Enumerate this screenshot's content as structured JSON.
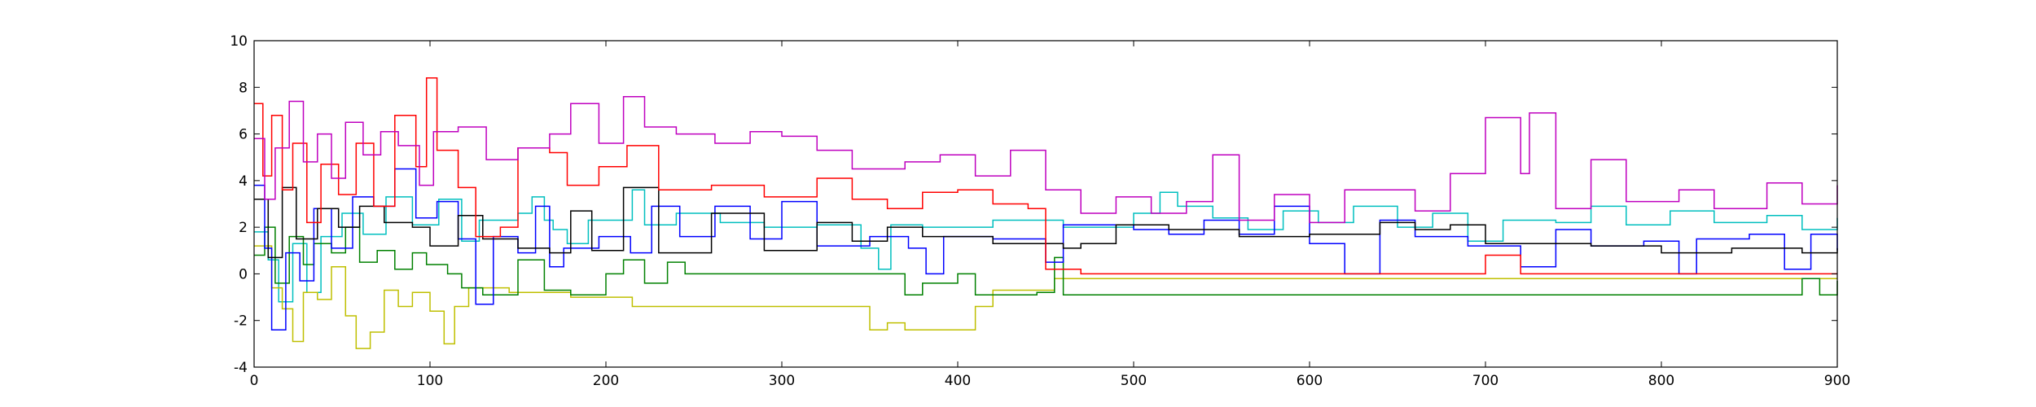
{
  "chart_data": {
    "type": "line",
    "title": "",
    "xlabel": "",
    "ylabel": "",
    "xlim": [
      0,
      900
    ],
    "ylim": [
      -4,
      10
    ],
    "grid": false,
    "legend": "none",
    "x_ticks": [
      "0",
      "100",
      "200",
      "300",
      "400",
      "500",
      "600",
      "700",
      "800",
      "900"
    ],
    "y_ticks": [
      "-4",
      "-2",
      "0",
      "2",
      "4",
      "6",
      "8",
      "10"
    ],
    "series": [
      {
        "color": "#00bfbf",
        "step": true,
        "points": [
          [
            0,
            1.8
          ],
          [
            8,
            0.6
          ],
          [
            14,
            -1.2
          ],
          [
            22,
            1.3
          ],
          [
            30,
            -0.8
          ],
          [
            38,
            1.6
          ],
          [
            50,
            2.6
          ],
          [
            62,
            1.7
          ],
          [
            75,
            3.3
          ],
          [
            90,
            2.1
          ],
          [
            105,
            3.2
          ],
          [
            118,
            1.4
          ],
          [
            128,
            2.3
          ],
          [
            150,
            2.6
          ],
          [
            158,
            3.3
          ],
          [
            165,
            2.3
          ],
          [
            170,
            1.9
          ],
          [
            178,
            1.3
          ],
          [
            190,
            2.3
          ],
          [
            215,
            3.6
          ],
          [
            222,
            2.1
          ],
          [
            240,
            2.6
          ],
          [
            265,
            2.2
          ],
          [
            290,
            2.0
          ],
          [
            320,
            2.1
          ],
          [
            345,
            1.1
          ],
          [
            355,
            0.2
          ],
          [
            362,
            2.1
          ],
          [
            380,
            2.0
          ],
          [
            420,
            2.3
          ],
          [
            460,
            2.0
          ],
          [
            500,
            2.6
          ],
          [
            515,
            3.5
          ],
          [
            525,
            2.9
          ],
          [
            545,
            2.4
          ],
          [
            565,
            1.9
          ],
          [
            585,
            2.7
          ],
          [
            605,
            2.2
          ],
          [
            625,
            2.9
          ],
          [
            650,
            2.0
          ],
          [
            670,
            2.6
          ],
          [
            690,
            1.4
          ],
          [
            710,
            2.3
          ],
          [
            740,
            2.2
          ],
          [
            760,
            2.9
          ],
          [
            780,
            2.1
          ],
          [
            805,
            2.7
          ],
          [
            830,
            2.2
          ],
          [
            860,
            2.5
          ],
          [
            880,
            1.9
          ],
          [
            900,
            2.4
          ]
        ]
      },
      {
        "color": "#bfbf00",
        "step": true,
        "points": [
          [
            0,
            1.2
          ],
          [
            10,
            -0.6
          ],
          [
            16,
            -1.5
          ],
          [
            22,
            -2.9
          ],
          [
            28,
            -0.8
          ],
          [
            36,
            -1.1
          ],
          [
            44,
            0.3
          ],
          [
            52,
            -1.8
          ],
          [
            58,
            -3.2
          ],
          [
            66,
            -2.5
          ],
          [
            74,
            -0.7
          ],
          [
            82,
            -1.4
          ],
          [
            90,
            -0.8
          ],
          [
            100,
            -1.6
          ],
          [
            108,
            -3.0
          ],
          [
            114,
            -1.4
          ],
          [
            122,
            -0.6
          ],
          [
            145,
            -0.8
          ],
          [
            180,
            -1.0
          ],
          [
            215,
            -1.4
          ],
          [
            350,
            -2.4
          ],
          [
            360,
            -2.1
          ],
          [
            370,
            -2.4
          ],
          [
            410,
            -1.4
          ],
          [
            420,
            -0.7
          ],
          [
            440,
            -0.7
          ],
          [
            455,
            -0.2
          ],
          [
            470,
            -0.2
          ],
          [
            600,
            -0.2
          ],
          [
            870,
            -0.2
          ],
          [
            900,
            -0.2
          ]
        ]
      },
      {
        "color": "#008000",
        "step": true,
        "points": [
          [
            0,
            0.8
          ],
          [
            6,
            2.0
          ],
          [
            12,
            -0.4
          ],
          [
            20,
            1.6
          ],
          [
            28,
            0.4
          ],
          [
            34,
            1.3
          ],
          [
            44,
            0.9
          ],
          [
            52,
            2.0
          ],
          [
            60,
            0.5
          ],
          [
            70,
            1.0
          ],
          [
            80,
            0.2
          ],
          [
            90,
            0.9
          ],
          [
            98,
            0.4
          ],
          [
            110,
            0.0
          ],
          [
            118,
            -0.6
          ],
          [
            130,
            -0.9
          ],
          [
            150,
            0.6
          ],
          [
            165,
            -0.7
          ],
          [
            180,
            -0.9
          ],
          [
            200,
            0.0
          ],
          [
            210,
            0.6
          ],
          [
            222,
            -0.4
          ],
          [
            235,
            0.5
          ],
          [
            245,
            0.0
          ],
          [
            300,
            0.0
          ],
          [
            360,
            0.0
          ],
          [
            370,
            -0.9
          ],
          [
            380,
            -0.4
          ],
          [
            400,
            0.0
          ],
          [
            410,
            -0.9
          ],
          [
            445,
            -0.8
          ],
          [
            455,
            0.7
          ],
          [
            460,
            -0.9
          ],
          [
            600,
            -0.9
          ],
          [
            870,
            -0.9
          ],
          [
            880,
            -0.2
          ],
          [
            890,
            -0.9
          ],
          [
            900,
            -0.3
          ]
        ]
      },
      {
        "color": "#0000ff",
        "step": true,
        "points": [
          [
            0,
            3.8
          ],
          [
            6,
            1.1
          ],
          [
            10,
            -2.4
          ],
          [
            18,
            0.9
          ],
          [
            26,
            -0.3
          ],
          [
            34,
            2.8
          ],
          [
            44,
            1.1
          ],
          [
            56,
            3.3
          ],
          [
            68,
            2.9
          ],
          [
            80,
            4.5
          ],
          [
            92,
            2.4
          ],
          [
            104,
            3.1
          ],
          [
            116,
            1.5
          ],
          [
            126,
            -1.3
          ],
          [
            136,
            1.6
          ],
          [
            150,
            0.9
          ],
          [
            160,
            2.9
          ],
          [
            168,
            0.3
          ],
          [
            176,
            1.1
          ],
          [
            196,
            1.6
          ],
          [
            214,
            0.9
          ],
          [
            226,
            2.9
          ],
          [
            242,
            1.6
          ],
          [
            262,
            2.9
          ],
          [
            282,
            1.5
          ],
          [
            300,
            3.1
          ],
          [
            320,
            1.2
          ],
          [
            350,
            1.6
          ],
          [
            372,
            1.1
          ],
          [
            382,
            0.0
          ],
          [
            392,
            1.6
          ],
          [
            420,
            1.5
          ],
          [
            450,
            0.5
          ],
          [
            460,
            2.1
          ],
          [
            500,
            1.9
          ],
          [
            520,
            1.7
          ],
          [
            540,
            2.3
          ],
          [
            560,
            1.7
          ],
          [
            580,
            2.9
          ],
          [
            600,
            1.3
          ],
          [
            620,
            0.0
          ],
          [
            640,
            2.3
          ],
          [
            660,
            1.6
          ],
          [
            690,
            1.2
          ],
          [
            720,
            0.3
          ],
          [
            740,
            1.9
          ],
          [
            760,
            1.2
          ],
          [
            790,
            1.4
          ],
          [
            810,
            0.0
          ],
          [
            820,
            1.5
          ],
          [
            850,
            1.7
          ],
          [
            870,
            0.2
          ],
          [
            885,
            1.7
          ],
          [
            900,
            1.0
          ]
        ]
      },
      {
        "color": "#000000",
        "step": true,
        "points": [
          [
            0,
            3.2
          ],
          [
            8,
            0.7
          ],
          [
            16,
            3.7
          ],
          [
            24,
            1.5
          ],
          [
            36,
            2.8
          ],
          [
            48,
            2.0
          ],
          [
            60,
            2.9
          ],
          [
            74,
            2.2
          ],
          [
            90,
            2.0
          ],
          [
            100,
            1.2
          ],
          [
            116,
            2.5
          ],
          [
            130,
            1.5
          ],
          [
            150,
            1.1
          ],
          [
            168,
            0.9
          ],
          [
            180,
            2.7
          ],
          [
            192,
            1.0
          ],
          [
            210,
            3.7
          ],
          [
            230,
            0.9
          ],
          [
            260,
            2.6
          ],
          [
            290,
            1.0
          ],
          [
            320,
            2.2
          ],
          [
            340,
            1.4
          ],
          [
            360,
            2.0
          ],
          [
            380,
            1.6
          ],
          [
            420,
            1.3
          ],
          [
            460,
            1.1
          ],
          [
            470,
            1.3
          ],
          [
            490,
            2.1
          ],
          [
            520,
            1.9
          ],
          [
            560,
            1.6
          ],
          [
            600,
            1.7
          ],
          [
            640,
            2.2
          ],
          [
            660,
            1.9
          ],
          [
            680,
            2.1
          ],
          [
            700,
            1.3
          ],
          [
            760,
            1.2
          ],
          [
            800,
            0.9
          ],
          [
            840,
            1.1
          ],
          [
            880,
            0.9
          ],
          [
            900,
            1.1
          ]
        ]
      },
      {
        "color": "#ff0000",
        "step": true,
        "points": [
          [
            0,
            7.3
          ],
          [
            5,
            4.2
          ],
          [
            10,
            6.8
          ],
          [
            16,
            3.6
          ],
          [
            22,
            5.6
          ],
          [
            30,
            2.2
          ],
          [
            38,
            4.7
          ],
          [
            48,
            3.4
          ],
          [
            58,
            5.6
          ],
          [
            68,
            2.9
          ],
          [
            80,
            6.8
          ],
          [
            92,
            4.6
          ],
          [
            98,
            8.4
          ],
          [
            104,
            5.3
          ],
          [
            116,
            3.7
          ],
          [
            126,
            1.6
          ],
          [
            140,
            2.0
          ],
          [
            150,
            5.4
          ],
          [
            168,
            5.2
          ],
          [
            178,
            3.8
          ],
          [
            196,
            4.6
          ],
          [
            212,
            5.5
          ],
          [
            230,
            3.6
          ],
          [
            260,
            3.8
          ],
          [
            290,
            3.3
          ],
          [
            320,
            4.1
          ],
          [
            340,
            3.2
          ],
          [
            360,
            2.8
          ],
          [
            380,
            3.5
          ],
          [
            400,
            3.6
          ],
          [
            420,
            3.0
          ],
          [
            440,
            2.8
          ],
          [
            450,
            0.2
          ],
          [
            470,
            0.0
          ],
          [
            520,
            0.0
          ],
          [
            680,
            0.0
          ],
          [
            700,
            0.8
          ],
          [
            720,
            0.0
          ],
          [
            900,
            0.0
          ]
        ]
      },
      {
        "color": "#bf00bf",
        "step": true,
        "points": [
          [
            0,
            5.8
          ],
          [
            6,
            3.2
          ],
          [
            12,
            5.4
          ],
          [
            20,
            7.4
          ],
          [
            28,
            4.8
          ],
          [
            36,
            6.0
          ],
          [
            44,
            4.1
          ],
          [
            52,
            6.5
          ],
          [
            62,
            5.1
          ],
          [
            72,
            6.1
          ],
          [
            82,
            5.5
          ],
          [
            94,
            3.8
          ],
          [
            102,
            6.1
          ],
          [
            116,
            6.3
          ],
          [
            132,
            4.9
          ],
          [
            150,
            5.4
          ],
          [
            168,
            6.0
          ],
          [
            180,
            7.3
          ],
          [
            196,
            5.6
          ],
          [
            210,
            7.6
          ],
          [
            222,
            6.3
          ],
          [
            240,
            6.0
          ],
          [
            262,
            5.6
          ],
          [
            282,
            6.1
          ],
          [
            300,
            5.9
          ],
          [
            320,
            5.3
          ],
          [
            340,
            4.5
          ],
          [
            370,
            4.8
          ],
          [
            390,
            5.1
          ],
          [
            410,
            4.2
          ],
          [
            430,
            5.3
          ],
          [
            450,
            3.6
          ],
          [
            470,
            2.6
          ],
          [
            490,
            3.3
          ],
          [
            510,
            2.6
          ],
          [
            530,
            3.1
          ],
          [
            545,
            5.1
          ],
          [
            560,
            2.3
          ],
          [
            580,
            3.4
          ],
          [
            600,
            2.2
          ],
          [
            620,
            3.6
          ],
          [
            660,
            2.7
          ],
          [
            680,
            4.3
          ],
          [
            700,
            6.7
          ],
          [
            720,
            4.3
          ],
          [
            725,
            6.9
          ],
          [
            740,
            2.8
          ],
          [
            760,
            4.9
          ],
          [
            780,
            3.1
          ],
          [
            810,
            3.6
          ],
          [
            830,
            2.8
          ],
          [
            860,
            3.9
          ],
          [
            880,
            3.0
          ],
          [
            900,
            3.8
          ]
        ]
      }
    ]
  }
}
